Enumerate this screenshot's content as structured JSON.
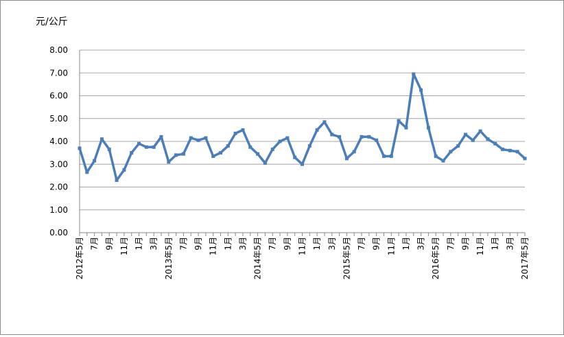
{
  "chart_data": {
    "type": "line",
    "title": "",
    "unit_label": "元/公斤",
    "xlabel": "",
    "ylabel": "",
    "ylim": [
      0,
      8
    ],
    "ytick_labels": [
      "0.00",
      "1.00",
      "2.00",
      "3.00",
      "4.00",
      "5.00",
      "6.00",
      "7.00",
      "8.00"
    ],
    "grid": "horizontal",
    "line_color": "#4a7ebb",
    "x_labels": [
      "2012年5月",
      "7月",
      "9月",
      "11月",
      "1月",
      "3月",
      "2013年5月",
      "7月",
      "9月",
      "11月",
      "1月",
      "3月",
      "2014年5月",
      "7月",
      "9月",
      "11月",
      "1月",
      "3月",
      "2015年5月",
      "7月",
      "9月",
      "11月",
      "1月",
      "3月",
      "2016年5月",
      "7月",
      "9月",
      "11月",
      "1月",
      "3月",
      "2017年5月"
    ],
    "values": [
      3.7,
      2.65,
      3.15,
      4.1,
      3.65,
      2.3,
      2.75,
      3.5,
      3.9,
      3.75,
      3.75,
      4.2,
      3.1,
      3.4,
      3.45,
      4.15,
      4.05,
      4.15,
      3.35,
      3.5,
      3.8,
      4.35,
      4.5,
      3.75,
      3.45,
      3.05,
      3.65,
      4.0,
      4.15,
      3.3,
      3.0,
      3.8,
      4.5,
      4.85,
      4.3,
      4.2,
      3.25,
      3.55,
      4.2,
      4.2,
      4.05,
      3.35,
      3.35,
      4.9,
      4.6,
      6.95,
      6.25,
      4.6,
      3.35,
      3.15,
      3.55,
      3.8,
      4.3,
      4.05,
      4.45,
      4.1,
      3.9,
      3.65,
      3.6,
      3.55,
      3.25
    ]
  }
}
